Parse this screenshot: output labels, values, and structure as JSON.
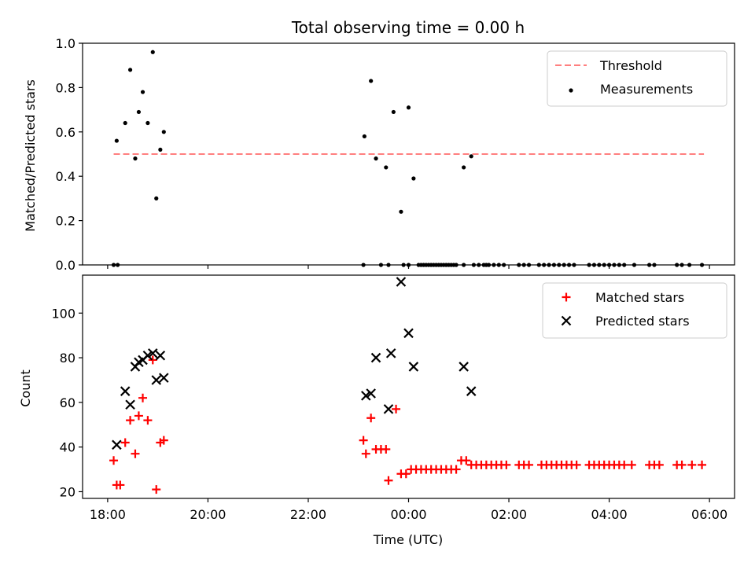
{
  "chart_data": {
    "type": "scatter",
    "title": "Total observing time = 0.00 h",
    "xlabel": "Time (UTC)",
    "x_tick_labels": [
      "18:00",
      "20:00",
      "22:00",
      "00:00",
      "02:00",
      "04:00",
      "06:00"
    ],
    "x_tick_hours": [
      0,
      2,
      4,
      6,
      8,
      10,
      12
    ],
    "xlim_hours": [
      -0.5,
      12.5
    ],
    "x_unit": "hours since 18:00 UTC",
    "panels": [
      {
        "name": "ratio",
        "ylabel": "Matched/Predicted stars",
        "ylim": [
          0,
          1.0
        ],
        "y_ticks": [
          0.0,
          0.2,
          0.4,
          0.6,
          0.8,
          1.0
        ],
        "y_tick_labels": [
          "0.0",
          "0.2",
          "0.4",
          "0.6",
          "0.8",
          "1.0"
        ],
        "legend_position": "top-right",
        "threshold": {
          "name": "Threshold",
          "value": 0.5,
          "x_range": [
            0.12,
            11.89
          ],
          "color": "#ff7f7f"
        },
        "series": [
          {
            "name": "Measurements",
            "marker": "dot",
            "color": "#000000",
            "points": [
              [
                0.12,
                0.0
              ],
              [
                0.2,
                0.0
              ],
              [
                0.18,
                0.56
              ],
              [
                0.35,
                0.64
              ],
              [
                0.45,
                0.88
              ],
              [
                0.55,
                0.48
              ],
              [
                0.62,
                0.69
              ],
              [
                0.7,
                0.78
              ],
              [
                0.8,
                0.64
              ],
              [
                0.9,
                0.96
              ],
              [
                0.97,
                0.3
              ],
              [
                1.05,
                0.52
              ],
              [
                1.12,
                0.6
              ],
              [
                5.1,
                0.0
              ],
              [
                5.12,
                0.58
              ],
              [
                5.25,
                0.83
              ],
              [
                5.35,
                0.48
              ],
              [
                5.45,
                0.0
              ],
              [
                5.55,
                0.44
              ],
              [
                5.6,
                0.0
              ],
              [
                5.7,
                0.69
              ],
              [
                5.85,
                0.24
              ],
              [
                5.9,
                0.0
              ],
              [
                6.0,
                0.0
              ],
              [
                6.0,
                0.71
              ],
              [
                6.1,
                0.39
              ],
              [
                6.2,
                0.0
              ],
              [
                6.25,
                0.0
              ],
              [
                6.3,
                0.0
              ],
              [
                6.35,
                0.0
              ],
              [
                6.4,
                0.0
              ],
              [
                6.45,
                0.0
              ],
              [
                6.5,
                0.0
              ],
              [
                6.55,
                0.0
              ],
              [
                6.6,
                0.0
              ],
              [
                6.65,
                0.0
              ],
              [
                6.7,
                0.0
              ],
              [
                6.75,
                0.0
              ],
              [
                6.8,
                0.0
              ],
              [
                6.85,
                0.0
              ],
              [
                6.9,
                0.0
              ],
              [
                6.95,
                0.0
              ],
              [
                7.1,
                0.0
              ],
              [
                7.1,
                0.44
              ],
              [
                7.25,
                0.49
              ],
              [
                7.3,
                0.0
              ],
              [
                7.4,
                0.0
              ],
              [
                7.5,
                0.0
              ],
              [
                7.55,
                0.0
              ],
              [
                7.6,
                0.0
              ],
              [
                7.7,
                0.0
              ],
              [
                7.8,
                0.0
              ],
              [
                7.9,
                0.0
              ],
              [
                8.2,
                0.0
              ],
              [
                8.3,
                0.0
              ],
              [
                8.4,
                0.0
              ],
              [
                8.6,
                0.0
              ],
              [
                8.7,
                0.0
              ],
              [
                8.8,
                0.0
              ],
              [
                8.9,
                0.0
              ],
              [
                9.0,
                0.0
              ],
              [
                9.1,
                0.0
              ],
              [
                9.2,
                0.0
              ],
              [
                9.3,
                0.0
              ],
              [
                9.6,
                0.0
              ],
              [
                9.7,
                0.0
              ],
              [
                9.8,
                0.0
              ],
              [
                9.9,
                0.0
              ],
              [
                10.0,
                0.0
              ],
              [
                10.1,
                0.0
              ],
              [
                10.2,
                0.0
              ],
              [
                10.3,
                0.0
              ],
              [
                10.5,
                0.0
              ],
              [
                10.8,
                0.0
              ],
              [
                10.9,
                0.0
              ],
              [
                11.35,
                0.0
              ],
              [
                11.45,
                0.0
              ],
              [
                11.6,
                0.0
              ],
              [
                11.85,
                0.0
              ]
            ]
          }
        ]
      },
      {
        "name": "count",
        "ylabel": "Count",
        "ylim": [
          17,
          117
        ],
        "y_ticks": [
          20,
          40,
          60,
          80,
          100
        ],
        "y_tick_labels": [
          "20",
          "40",
          "60",
          "80",
          "100"
        ],
        "legend_position": "top-right",
        "series": [
          {
            "name": "Matched stars",
            "marker": "plus",
            "color": "#ff0000",
            "points": [
              [
                0.12,
                34
              ],
              [
                0.18,
                23
              ],
              [
                0.25,
                23
              ],
              [
                0.35,
                42
              ],
              [
                0.45,
                52
              ],
              [
                0.55,
                37
              ],
              [
                0.62,
                54
              ],
              [
                0.7,
                62
              ],
              [
                0.8,
                52
              ],
              [
                0.9,
                79
              ],
              [
                0.97,
                21
              ],
              [
                1.05,
                42
              ],
              [
                1.12,
                43
              ],
              [
                5.1,
                43
              ],
              [
                5.15,
                37
              ],
              [
                5.25,
                53
              ],
              [
                5.35,
                39
              ],
              [
                5.45,
                39
              ],
              [
                5.55,
                39
              ],
              [
                5.6,
                25
              ],
              [
                5.75,
                57
              ],
              [
                5.85,
                28
              ],
              [
                5.95,
                28
              ],
              [
                6.05,
                30
              ],
              [
                6.15,
                30
              ],
              [
                6.25,
                30
              ],
              [
                6.35,
                30
              ],
              [
                6.45,
                30
              ],
              [
                6.55,
                30
              ],
              [
                6.65,
                30
              ],
              [
                6.75,
                30
              ],
              [
                6.85,
                30
              ],
              [
                6.95,
                30
              ],
              [
                7.05,
                34
              ],
              [
                7.15,
                34
              ],
              [
                7.25,
                32
              ],
              [
                7.35,
                32
              ],
              [
                7.45,
                32
              ],
              [
                7.55,
                32
              ],
              [
                7.65,
                32
              ],
              [
                7.75,
                32
              ],
              [
                7.85,
                32
              ],
              [
                7.95,
                32
              ],
              [
                8.2,
                32
              ],
              [
                8.3,
                32
              ],
              [
                8.4,
                32
              ],
              [
                8.65,
                32
              ],
              [
                8.75,
                32
              ],
              [
                8.85,
                32
              ],
              [
                8.95,
                32
              ],
              [
                9.05,
                32
              ],
              [
                9.15,
                32
              ],
              [
                9.25,
                32
              ],
              [
                9.35,
                32
              ],
              [
                9.6,
                32
              ],
              [
                9.7,
                32
              ],
              [
                9.8,
                32
              ],
              [
                9.9,
                32
              ],
              [
                10.0,
                32
              ],
              [
                10.1,
                32
              ],
              [
                10.2,
                32
              ],
              [
                10.3,
                32
              ],
              [
                10.45,
                32
              ],
              [
                10.8,
                32
              ],
              [
                10.9,
                32
              ],
              [
                11.0,
                32
              ],
              [
                11.35,
                32
              ],
              [
                11.45,
                32
              ],
              [
                11.65,
                32
              ],
              [
                11.85,
                32
              ]
            ]
          },
          {
            "name": "Predicted stars",
            "marker": "x",
            "color": "#000000",
            "points": [
              [
                0.18,
                41
              ],
              [
                0.35,
                65
              ],
              [
                0.45,
                59
              ],
              [
                0.55,
                76
              ],
              [
                0.62,
                78
              ],
              [
                0.7,
                79
              ],
              [
                0.8,
                81
              ],
              [
                0.9,
                82
              ],
              [
                0.97,
                70
              ],
              [
                1.05,
                81
              ],
              [
                1.12,
                71
              ],
              [
                5.15,
                63
              ],
              [
                5.25,
                64
              ],
              [
                5.35,
                80
              ],
              [
                5.6,
                57
              ],
              [
                5.65,
                82
              ],
              [
                5.85,
                114
              ],
              [
                6.0,
                91
              ],
              [
                6.1,
                76
              ],
              [
                7.1,
                76
              ],
              [
                7.25,
                65
              ]
            ]
          }
        ]
      }
    ]
  }
}
